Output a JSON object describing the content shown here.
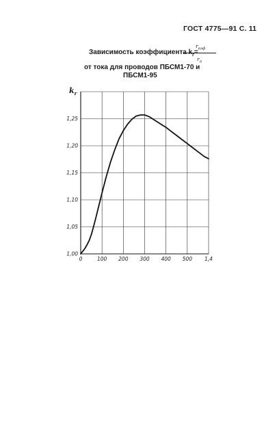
{
  "header": {
    "doc_id": "ГОСТ 4775—91 С. 11"
  },
  "title": {
    "line1_prefix": "Зависимость коэффициента k",
    "line1_subscript": "r",
    "line1_eq": "=",
    "fraction_numerator": "r",
    "fraction_numerator_sub": "вэф",
    "fraction_denominator": "r",
    "fraction_denominator_sub": "п",
    "line2": "от тока для проводов ПБСМ1-70 и",
    "line3": "ПБСМ1-95"
  },
  "chart_data": {
    "type": "line",
    "title": "Зависимость коэффициента kr = rвэф / rп от тока для проводов ПБСМ1-70 и ПБСМ1-95",
    "ylabel": "k",
    "ylabel_sub": "r",
    "xlabel": "",
    "x_ticks": [
      "0",
      "100",
      "200",
      "300",
      "400",
      "500",
      "1,4"
    ],
    "x_tick_values": [
      0,
      100,
      200,
      300,
      400,
      500,
      600
    ],
    "y_ticks": [
      "1,00",
      "1,05",
      "1,10",
      "1,15",
      "1,20",
      "1,25"
    ],
    "y_tick_values": [
      1.0,
      1.05,
      1.1,
      1.15,
      1.2,
      1.25
    ],
    "xlim": [
      0,
      600
    ],
    "ylim": [
      1.0,
      1.3
    ],
    "grid": true,
    "series": [
      {
        "x": [
          0,
          10,
          20,
          30,
          40,
          50,
          60,
          70,
          80,
          90,
          100,
          110,
          120,
          140,
          160,
          180,
          200,
          220,
          240,
          260,
          280,
          300,
          320,
          340,
          360,
          380,
          400,
          420,
          440,
          460,
          480,
          500,
          520,
          540,
          560,
          580,
          600
        ],
        "y": [
          1.0,
          1.005,
          1.01,
          1.017,
          1.025,
          1.036,
          1.05,
          1.065,
          1.081,
          1.097,
          1.113,
          1.128,
          1.143,
          1.17,
          1.193,
          1.213,
          1.228,
          1.24,
          1.249,
          1.255,
          1.257,
          1.257,
          1.254,
          1.249,
          1.244,
          1.239,
          1.234,
          1.228,
          1.222,
          1.216,
          1.21,
          1.204,
          1.198,
          1.192,
          1.186,
          1.18,
          1.176
        ]
      }
    ]
  }
}
